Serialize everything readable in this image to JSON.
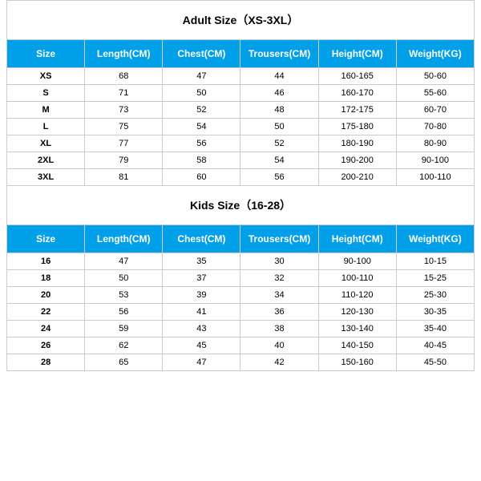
{
  "adult": {
    "title": "Adult Size（XS-3XL）",
    "columns": [
      "Size",
      "Length(CM)",
      "Chest(CM)",
      "Trousers(CM)",
      "Height(CM)",
      "Weight(KG)"
    ],
    "rows": [
      [
        "XS",
        "68",
        "47",
        "44",
        "160-165",
        "50-60"
      ],
      [
        "S",
        "71",
        "50",
        "46",
        "160-170",
        "55-60"
      ],
      [
        "M",
        "73",
        "52",
        "48",
        "172-175",
        "60-70"
      ],
      [
        "L",
        "75",
        "54",
        "50",
        "175-180",
        "70-80"
      ],
      [
        "XL",
        "77",
        "56",
        "52",
        "180-190",
        "80-90"
      ],
      [
        "2XL",
        "79",
        "58",
        "54",
        "190-200",
        "90-100"
      ],
      [
        "3XL",
        "81",
        "60",
        "56",
        "200-210",
        "100-110"
      ]
    ]
  },
  "kids": {
    "title": "Kids Size（16-28）",
    "columns": [
      "Size",
      "Length(CM)",
      "Chest(CM)",
      "Trousers(CM)",
      "Height(CM)",
      "Weight(KG)"
    ],
    "rows": [
      [
        "16",
        "47",
        "35",
        "30",
        "90-100",
        "10-15"
      ],
      [
        "18",
        "50",
        "37",
        "32",
        "100-110",
        "15-25"
      ],
      [
        "20",
        "53",
        "39",
        "34",
        "110-120",
        "25-30"
      ],
      [
        "22",
        "56",
        "41",
        "36",
        "120-130",
        "30-35"
      ],
      [
        "24",
        "59",
        "43",
        "38",
        "130-140",
        "35-40"
      ],
      [
        "26",
        "62",
        "45",
        "40",
        "140-150",
        "40-45"
      ],
      [
        "28",
        "65",
        "47",
        "42",
        "150-160",
        "45-50"
      ]
    ]
  },
  "styling": {
    "header_bg": "#00a0e9",
    "header_text": "#ffffff",
    "border_color": "#cccccc",
    "title_fontsize": 14,
    "header_fontsize": 12,
    "cell_fontsize": 11
  }
}
